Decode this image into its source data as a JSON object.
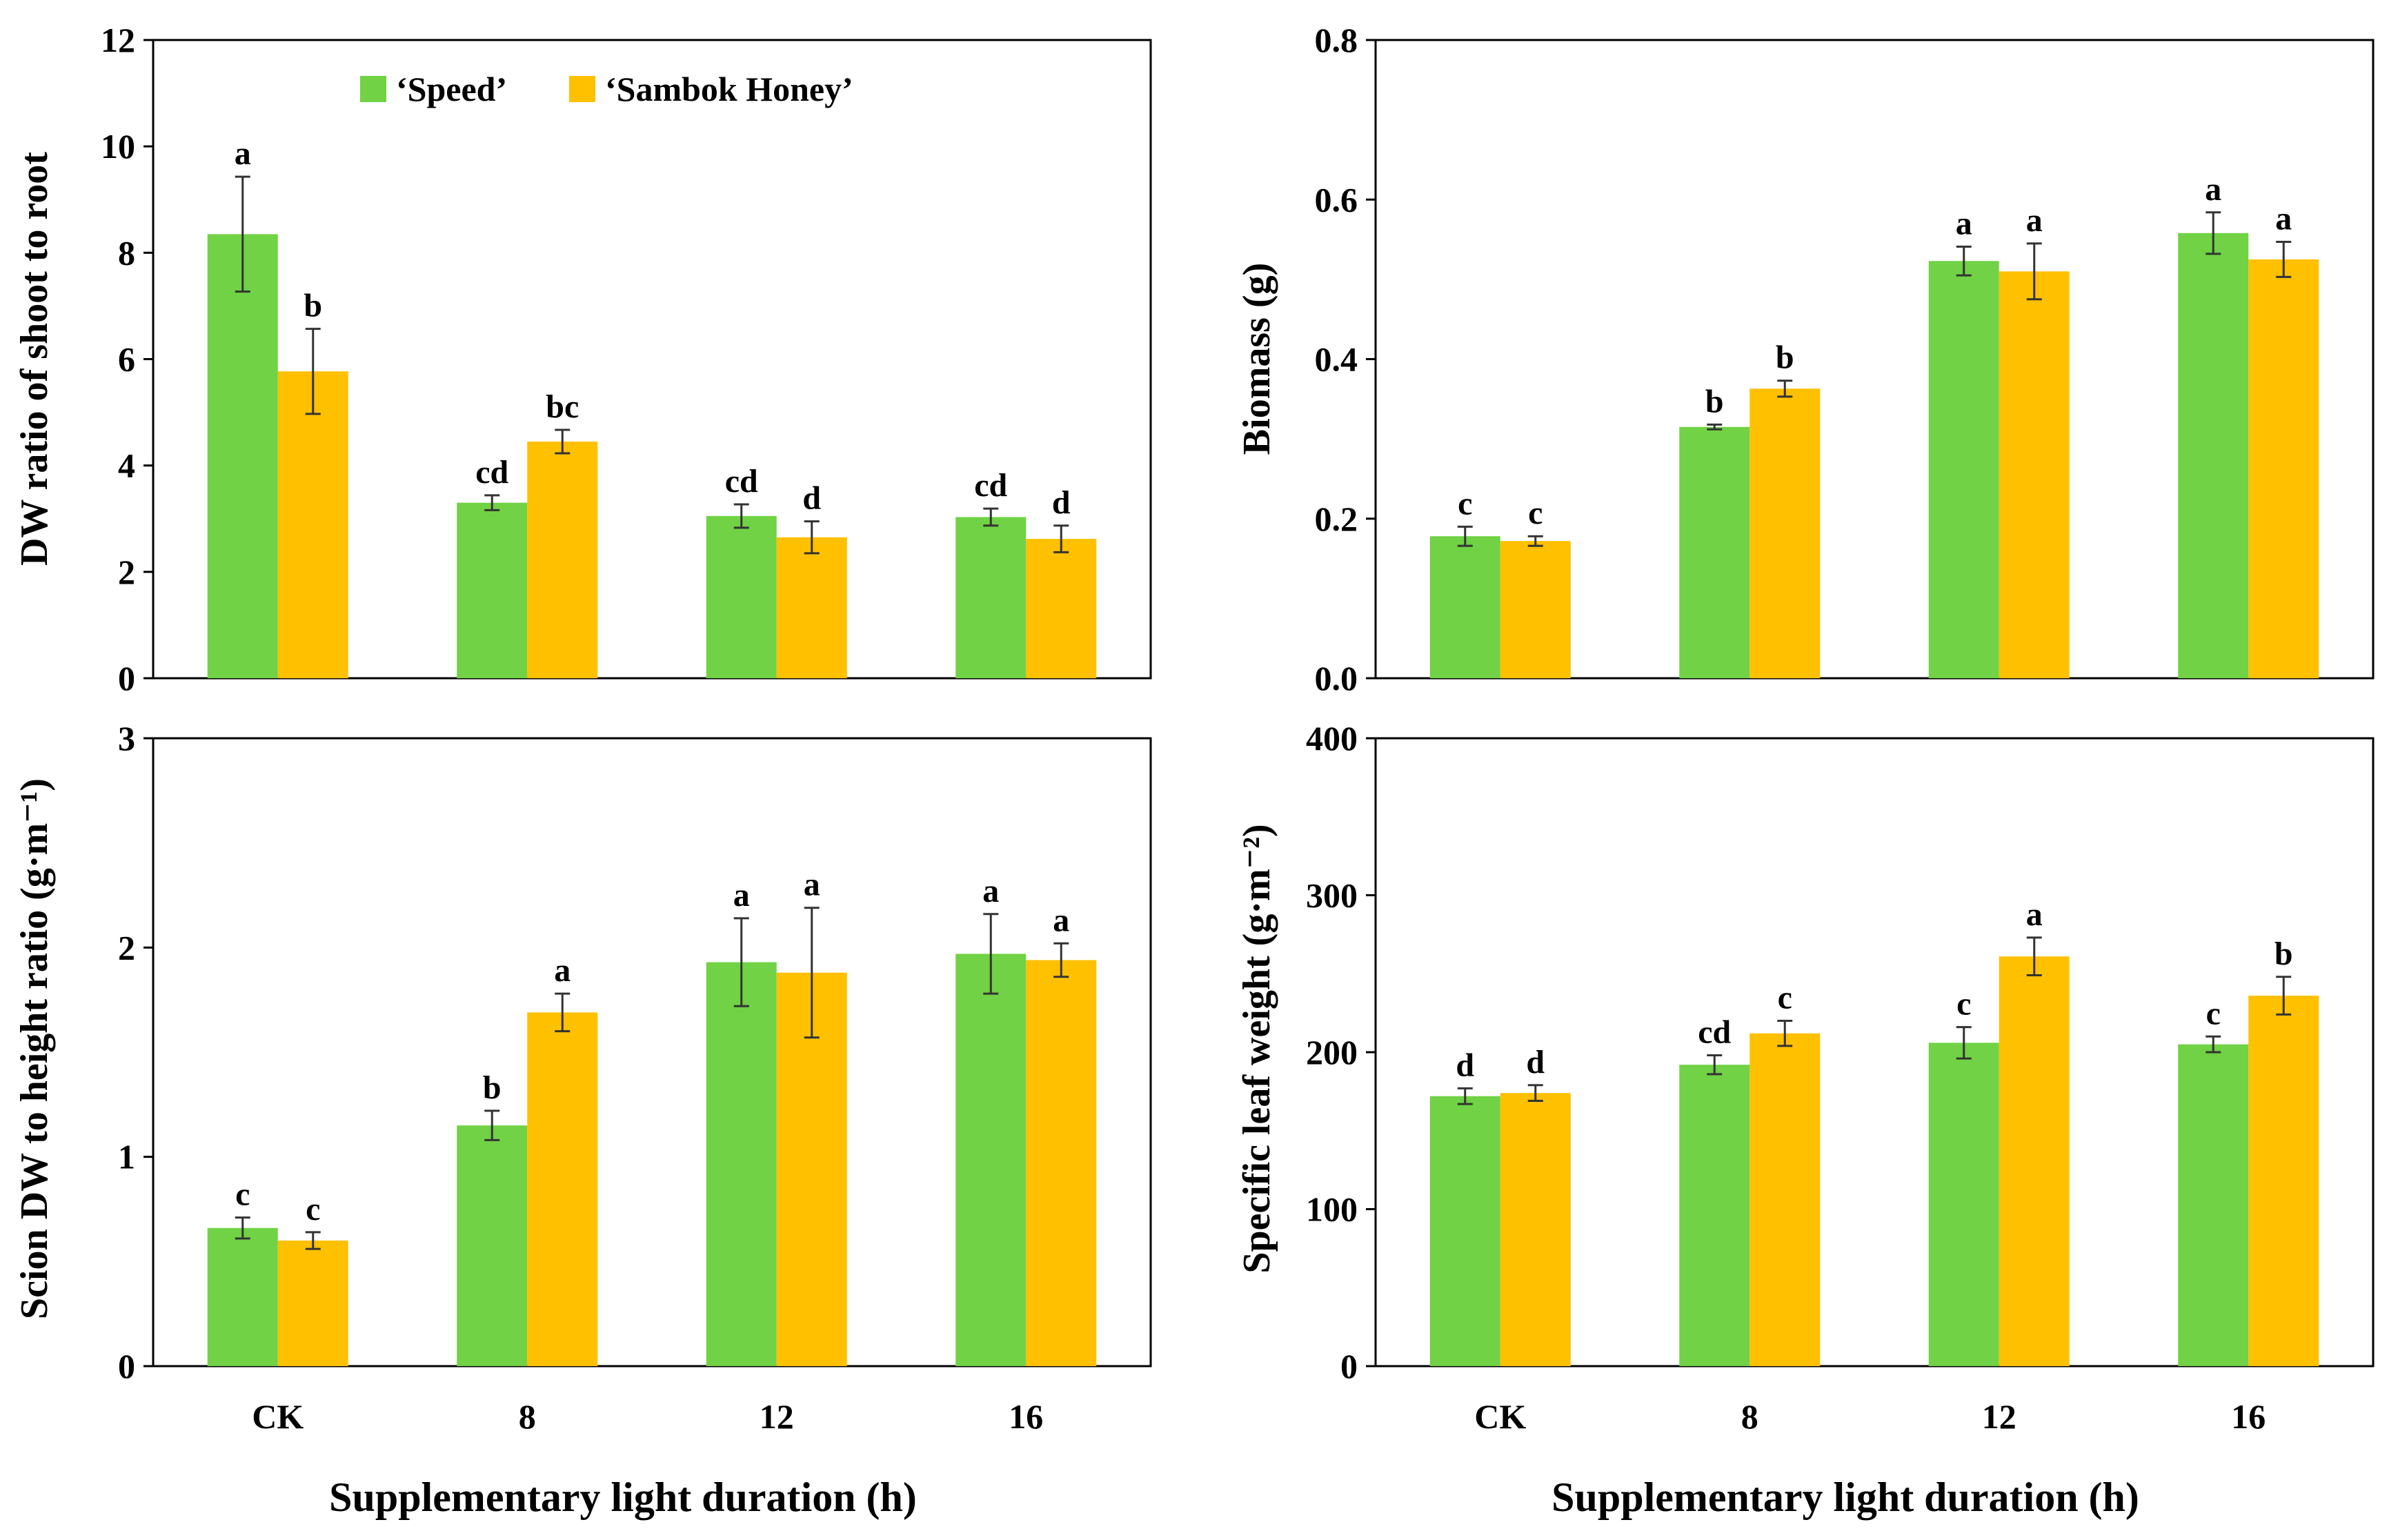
{
  "colors": {
    "speed": "#70D244",
    "sambok": "#FFC000",
    "axis": "#000000",
    "error": "#333333"
  },
  "legend": {
    "series": [
      "‘Speed’",
      "‘Sambok Honey’"
    ]
  },
  "x_axis_title": "Supplementary light duration (h)",
  "chart_data": [
    {
      "type": "bar",
      "panel": "top-left",
      "ylabel": "DW ratio of shoot to root",
      "ylim": [
        0,
        12
      ],
      "yticks": [
        "0",
        "2",
        "4",
        "6",
        "8",
        "10",
        "12"
      ],
      "categories": [
        "CK",
        "8",
        "12",
        "16"
      ],
      "show_categories": false,
      "series": [
        {
          "name": "‘Speed’",
          "values": [
            8.35,
            3.3,
            3.05,
            3.03
          ],
          "errors": [
            1.08,
            0.14,
            0.22,
            0.16
          ],
          "labels": [
            "a",
            "cd",
            "cd",
            "cd"
          ]
        },
        {
          "name": "‘Sambok Honey’",
          "values": [
            5.77,
            4.45,
            2.65,
            2.62
          ],
          "errors": [
            0.8,
            0.22,
            0.3,
            0.25
          ],
          "labels": [
            "b",
            "bc",
            "d",
            "d"
          ]
        }
      ]
    },
    {
      "type": "bar",
      "panel": "top-right",
      "ylabel": "Biomass (g)",
      "ylim": [
        0,
        0.8
      ],
      "yticks": [
        "0.0",
        "0.2",
        "0.4",
        "0.6",
        "0.8"
      ],
      "categories": [
        "CK",
        "8",
        "12",
        "16"
      ],
      "show_categories": false,
      "series": [
        {
          "name": "‘Speed’",
          "values": [
            0.178,
            0.315,
            0.523,
            0.558
          ],
          "errors": [
            0.012,
            0.003,
            0.018,
            0.026
          ],
          "labels": [
            "c",
            "b",
            "a",
            "a"
          ]
        },
        {
          "name": "‘Sambok Honey’",
          "values": [
            0.172,
            0.363,
            0.51,
            0.525
          ],
          "errors": [
            0.006,
            0.01,
            0.035,
            0.022
          ],
          "labels": [
            "c",
            "b",
            "a",
            "a"
          ]
        }
      ]
    },
    {
      "type": "bar",
      "panel": "bottom-left",
      "ylabel": "Scion DW to height ratio (g·m⁻¹)",
      "ylim": [
        0,
        3
      ],
      "yticks": [
        "0",
        "1",
        "2",
        "3"
      ],
      "categories": [
        "CK",
        "8",
        "12",
        "16"
      ],
      "show_categories": true,
      "series": [
        {
          "name": "‘Speed’",
          "values": [
            0.66,
            1.15,
            1.93,
            1.97
          ],
          "errors": [
            0.05,
            0.07,
            0.21,
            0.19
          ],
          "labels": [
            "c",
            "b",
            "a",
            "a"
          ]
        },
        {
          "name": "‘Sambok Honey’",
          "values": [
            0.6,
            1.69,
            1.88,
            1.94
          ],
          "errors": [
            0.04,
            0.09,
            0.31,
            0.08
          ],
          "labels": [
            "c",
            "a",
            "a",
            "a"
          ]
        }
      ]
    },
    {
      "type": "bar",
      "panel": "bottom-right",
      "ylabel": "Specific leaf weight (g·m⁻²)",
      "ylim": [
        0,
        400
      ],
      "yticks": [
        "0",
        "100",
        "200",
        "300",
        "400"
      ],
      "categories": [
        "CK",
        "8",
        "12",
        "16"
      ],
      "show_categories": true,
      "series": [
        {
          "name": "‘Speed’",
          "values": [
            172,
            192,
            206,
            205
          ],
          "errors": [
            5,
            6,
            10,
            5
          ],
          "labels": [
            "d",
            "cd",
            "c",
            "c"
          ]
        },
        {
          "name": "‘Sambok Honey’",
          "values": [
            174,
            212,
            261,
            236
          ],
          "errors": [
            5,
            8,
            12,
            12
          ],
          "labels": [
            "d",
            "c",
            "a",
            "b"
          ]
        }
      ]
    }
  ]
}
